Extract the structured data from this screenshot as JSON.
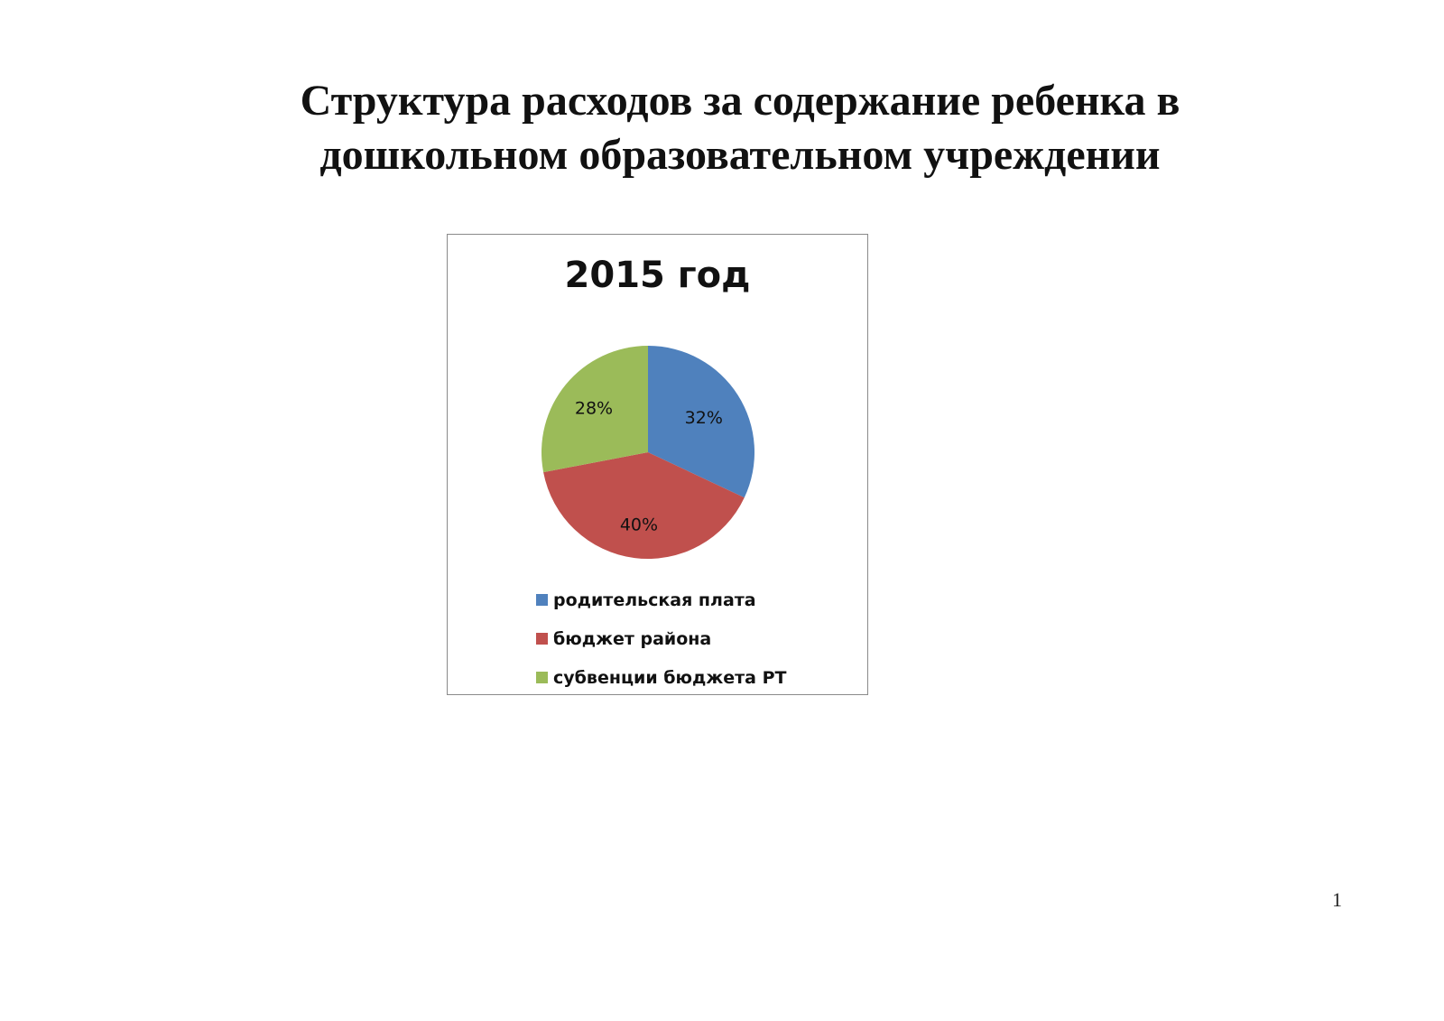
{
  "page": {
    "title_line1": "Структура расходов за содержание ребенка  в",
    "title_line2": "дошкольном образовательном учреждении",
    "page_number": "1"
  },
  "chart_data": {
    "type": "pie",
    "title": "2015 год",
    "categories": [
      "родительская плата",
      "бюджет района",
      "субвенции бюджета РТ"
    ],
    "values": [
      32,
      40,
      28
    ],
    "labels": [
      "32%",
      "40%",
      "28%"
    ],
    "colors": [
      "#4f81bd",
      "#c0504d",
      "#9bbb59"
    ],
    "start_angle": "top, clockwise",
    "legend_position": "bottom"
  }
}
